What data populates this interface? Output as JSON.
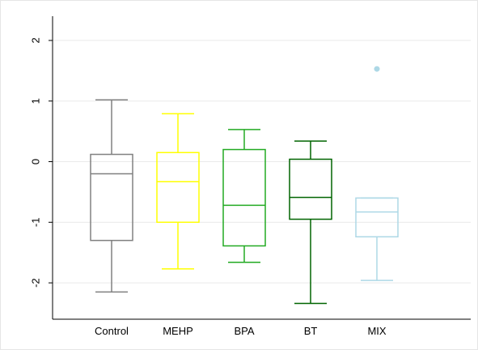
{
  "chart_data": {
    "type": "box",
    "title": "",
    "xlabel": "",
    "ylabel": "",
    "ylim": [
      -2.6,
      2.4
    ],
    "yticks": [
      -2,
      -1,
      0,
      1,
      2
    ],
    "ytick_labels": [
      "-2",
      "-1",
      "0",
      "1",
      "2"
    ],
    "grid": true,
    "categories": [
      "Control",
      "MEHP",
      "BPA",
      "BT",
      "MIX"
    ],
    "boxes": [
      {
        "category": "Control",
        "color": "#808080",
        "whisker_low": -2.15,
        "q1": -1.3,
        "median": -0.2,
        "q3": 0.12,
        "whisker_high": 1.02,
        "outliers": []
      },
      {
        "category": "MEHP",
        "color": "#ffff00",
        "whisker_low": -1.77,
        "q1": -1.0,
        "median": -0.33,
        "q3": 0.15,
        "whisker_high": 0.79,
        "outliers": []
      },
      {
        "category": "BPA",
        "color": "#22aa22",
        "whisker_low": -1.66,
        "q1": -1.39,
        "median": -0.72,
        "q3": 0.2,
        "whisker_high": 0.53,
        "outliers": []
      },
      {
        "category": "BT",
        "color": "#006400",
        "whisker_low": -2.34,
        "q1": -0.95,
        "median": -0.59,
        "q3": 0.04,
        "whisker_high": 0.34,
        "outliers": []
      },
      {
        "category": "MIX",
        "color": "#add8e6",
        "whisker_low": -1.96,
        "q1": -1.24,
        "median": -0.83,
        "q3": -0.6,
        "whisker_high": -0.6,
        "outliers": [
          1.53
        ]
      }
    ]
  }
}
